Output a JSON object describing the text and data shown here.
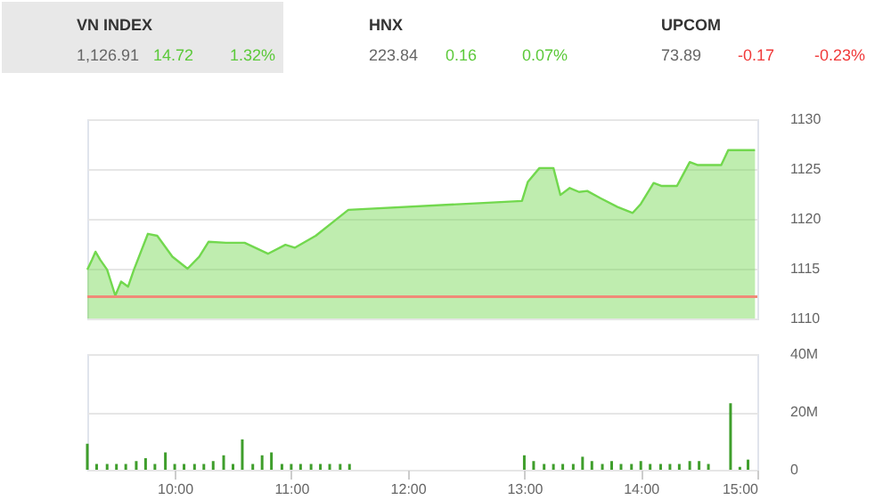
{
  "chart_data": [
    {
      "type": "area",
      "annotations": [
        "VN INDEX",
        "1,126.91",
        "14.72",
        "1.32%",
        "HNX",
        "223.84",
        "0.16",
        "0.07%",
        "UPCOM",
        "73.89",
        "-0.17",
        "-0.23%"
      ],
      "x": [
        9.25,
        9.29,
        9.32,
        9.36,
        9.42,
        9.49,
        9.54,
        9.6,
        9.65,
        9.77,
        9.85,
        9.98,
        10.11,
        10.21,
        10.29,
        10.44,
        10.6,
        10.8,
        10.95,
        11.03,
        11.21,
        11.36,
        11.49,
        12.65,
        12.98,
        13.03,
        13.13,
        13.25,
        13.31,
        13.39,
        13.47,
        13.54,
        13.65,
        13.8,
        13.93,
        14.0,
        14.11,
        14.18,
        14.31,
        14.42,
        14.49,
        14.69,
        14.75,
        14.98
      ],
      "series": [
        {
          "color": "#72d84e",
          "values": [
            1114.9,
            1115.9,
            1116.7,
            1115.9,
            1114.9,
            1112.3,
            1113.7,
            1113.2,
            1114.9,
            1118.5,
            1118.3,
            1116.2,
            1115.0,
            1116.2,
            1117.7,
            1117.6,
            1117.6,
            1116.5,
            1117.4,
            1117.1,
            1118.3,
            1119.7,
            1120.9,
            1121.6,
            1121.8,
            1123.7,
            1125.1,
            1125.1,
            1122.4,
            1123.1,
            1122.7,
            1122.8,
            1122.1,
            1121.2,
            1120.6,
            1121.5,
            1123.6,
            1123.3,
            1123.3,
            1125.7,
            1125.4,
            1125.4,
            1126.9,
            1126.9
          ]
        }
      ],
      "xlim": [
        9.25,
        15.0
      ],
      "ylim": [
        1110,
        1130
      ],
      "yticks": [
        1110,
        1115,
        1120,
        1125,
        1130
      ],
      "ref_lines": [
        {
          "axis": "y",
          "value": 1112.19,
          "color": "#f08a78"
        }
      ],
      "grid": "y",
      "tick_labels": "y"
    },
    {
      "type": "bar",
      "x": [
        9.25,
        9.33,
        9.42,
        9.5,
        9.58,
        9.67,
        9.75,
        9.83,
        9.92,
        10.0,
        10.08,
        10.17,
        10.25,
        10.33,
        10.42,
        10.5,
        10.58,
        10.67,
        10.75,
        10.83,
        10.92,
        11.0,
        11.08,
        11.17,
        11.25,
        11.33,
        11.42,
        11.5,
        13.0,
        13.08,
        13.17,
        13.25,
        13.33,
        13.42,
        13.5,
        13.58,
        13.67,
        13.75,
        13.83,
        13.92,
        14.0,
        14.08,
        14.17,
        14.25,
        14.33,
        14.42,
        14.5,
        14.58,
        14.77,
        14.85,
        14.92
      ],
      "series": [
        {
          "color": "#3f9e2c",
          "values": [
            9,
            2,
            2,
            2,
            2,
            3,
            4,
            2,
            6,
            2,
            2,
            2,
            2,
            3,
            5,
            2,
            10.5,
            2,
            5,
            6,
            2,
            2,
            2,
            2,
            2,
            2,
            2,
            2,
            5,
            3,
            2,
            2,
            2,
            2,
            4.5,
            3,
            2,
            3,
            2,
            2,
            3,
            2,
            2,
            2,
            2,
            3,
            3,
            2,
            23,
            1,
            3.5
          ]
        }
      ],
      "xlim": [
        9.25,
        15.0
      ],
      "xticks": [
        {
          "value": 10,
          "label": "10:00"
        },
        {
          "value": 11,
          "label": "11:00"
        },
        {
          "value": 12,
          "label": "12:00"
        },
        {
          "value": 13,
          "label": "13:00"
        },
        {
          "value": 14,
          "label": "14:00"
        },
        {
          "value": 15,
          "label": "15:00"
        }
      ],
      "ylim": [
        0,
        40
      ],
      "yticks": [
        0,
        {
          "value": 20,
          "label": "20M"
        },
        {
          "value": 40,
          "label": "40M"
        }
      ],
      "grid": "y"
    }
  ]
}
